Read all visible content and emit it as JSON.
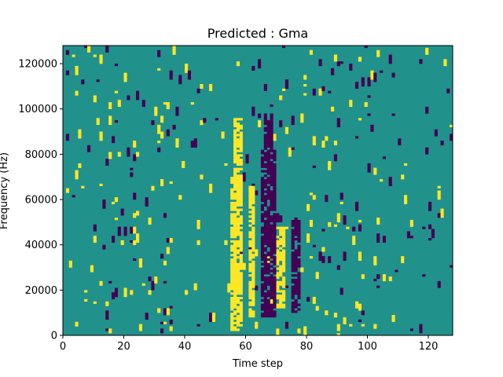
{
  "chart_data": {
    "type": "heatmap",
    "title": "Predicted : Gma",
    "xlabel": "Time step",
    "ylabel": "Frequency (Hz)",
    "xlim": [
      0,
      128
    ],
    "ylim": [
      0,
      128000
    ],
    "xticks": [
      0,
      20,
      40,
      60,
      80,
      100,
      120
    ],
    "yticks": [
      0,
      20000,
      40000,
      60000,
      80000,
      100000,
      120000
    ],
    "colormap": {
      "low": "#440154",
      "mid": "#21918c",
      "high": "#fde725"
    },
    "background_value": "mid",
    "grid": false,
    "legend": "none",
    "columns_bright": [
      {
        "x_range": [
          55,
          59
        ],
        "y_range": [
          2000,
          70000
        ],
        "value": "high"
      },
      {
        "x_range": [
          56,
          59
        ],
        "y_range": [
          70000,
          96000
        ],
        "value": "high"
      },
      {
        "x_range": [
          61,
          63
        ],
        "y_range": [
          8000,
          66000
        ],
        "value": "high"
      },
      {
        "x_range": [
          70,
          73
        ],
        "y_range": [
          12000,
          48000
        ],
        "value": "high"
      }
    ],
    "columns_dark": [
      {
        "x_range": [
          65,
          70
        ],
        "y_range": [
          8000,
          82000
        ],
        "value": "low"
      },
      {
        "x_range": [
          66,
          69
        ],
        "y_range": [
          82000,
          98000
        ],
        "value": "low"
      },
      {
        "x_range": [
          75,
          78
        ],
        "y_range": [
          10000,
          52000
        ],
        "value": "low"
      }
    ]
  }
}
